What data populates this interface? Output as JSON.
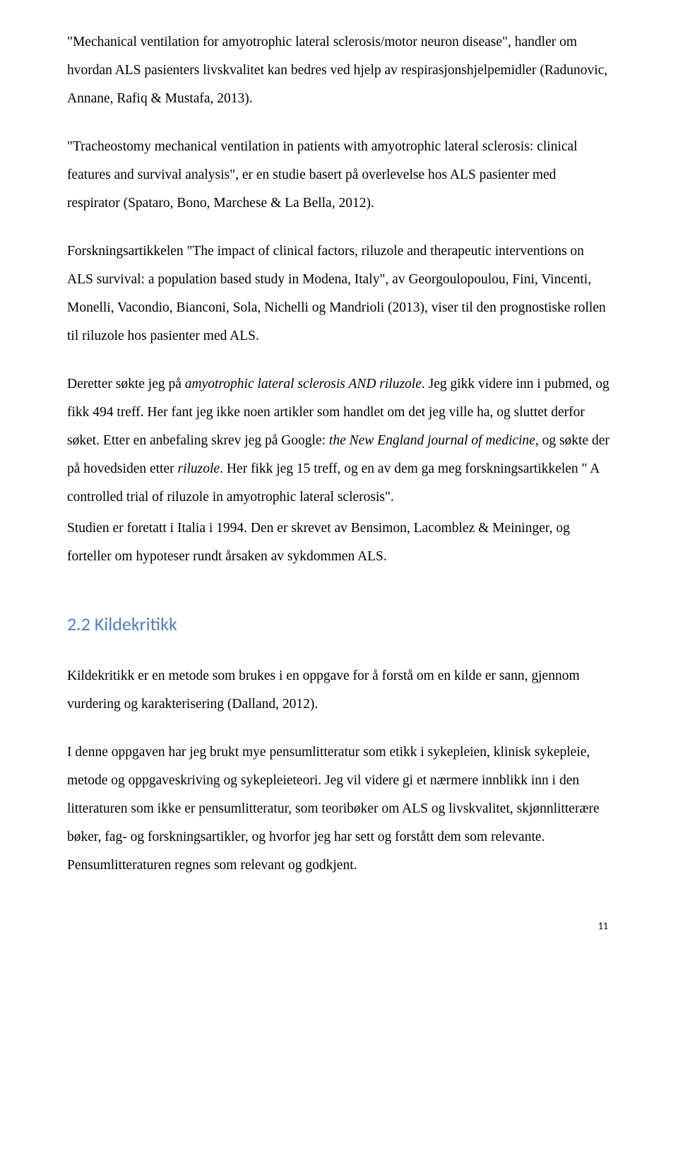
{
  "paragraphs": {
    "p1": "\"Mechanical ventilation for amyotrophic lateral sclerosis/motor neuron disease\", handler om hvordan ALS pasienters livskvalitet kan bedres ved hjelp av respirasjonshjelpemidler (Radunovic, Annane, Rafiq & Mustafa, 2013).",
    "p2": "\"Tracheostomy mechanical ventilation in patients with amyotrophic lateral sclerosis: clinical features and survival analysis\", er en studie basert på overlevelse hos ALS pasienter med respirator (Spataro, Bono, Marchese & La Bella, 2012).",
    "p3": "Forskningsartikkelen \"The impact of clinical factors, riluzole and therapeutic interventions on ALS survival: a population based study in Modena, Italy\", av Georgoulopoulou, Fini, Vincenti, Monelli, Vacondio, Bianconi, Sola, Nichelli og Mandrioli (2013), viser til den prognostiske rollen til riluzole hos pasienter med ALS.",
    "p4_a": "Deretter søkte jeg på ",
    "p4_b": "amyotrophic lateral sclerosis AND riluzole",
    "p4_c": ". Jeg gikk videre inn i pubmed, og fikk 494 treff. Her fant jeg ikke noen artikler som handlet om det jeg ville ha, og sluttet derfor søket. Etter en anbefaling skrev jeg på Google: ",
    "p4_d": "the New England journal of medicine, ",
    "p4_e": "og søkte der på hovedsiden etter ",
    "p4_f": "riluzole",
    "p4_g": ". Her fikk jeg 15 treff, og en av dem ga meg forskningsartikkelen \" A controlled trial of riluzole in amyotrophic lateral sclerosis\".",
    "p5": "Studien er foretatt i Italia i 1994. Den er skrevet av Bensimon, Lacomblez & Meininger, og forteller om hypoteser rundt årsaken av sykdommen ALS.",
    "p6": "Kildekritikk er en metode som brukes i en oppgave for å forstå om en kilde er sann, gjennom vurdering og karakterisering (Dalland, 2012).",
    "p7": "I denne oppgaven har jeg brukt mye pensumlitteratur som etikk i sykepleien, klinisk sykepleie, metode og oppgaveskriving og sykepleieteori. Jeg vil videre gi et nærmere innblikk inn i den litteraturen som ikke er pensumlitteratur, som teoribøker om ALS og livskvalitet, skjønnlitterære bøker, fag- og forskningsartikler, og hvorfor jeg har sett og forstått dem som relevante. Pensumlitteraturen regnes som relevant og godkjent."
  },
  "heading": "2.2 Kildekritikk",
  "page_number": "11"
}
